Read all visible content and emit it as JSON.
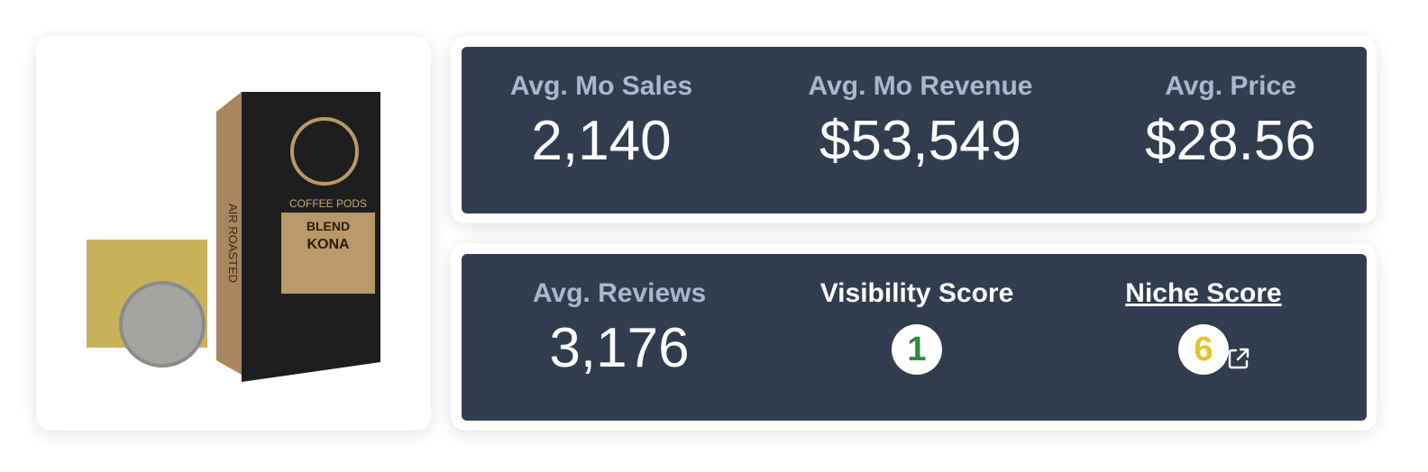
{
  "product": {
    "image_texts": [
      "AIR ROASTED",
      "COFFEE PODS",
      "BLEND",
      "KONA"
    ]
  },
  "metrics": [
    {
      "label": "Avg. Mo Sales",
      "value": "2,140"
    },
    {
      "label": "Avg. Mo Revenue",
      "value": "$53,549"
    },
    {
      "label": "Avg. Price",
      "value": "$28.56"
    },
    {
      "label": "Avg. Reviews",
      "value": "3,176"
    }
  ],
  "scores": [
    {
      "label": "Visibility Score",
      "value": "1"
    },
    {
      "label": "Niche Score",
      "value": "6"
    }
  ]
}
